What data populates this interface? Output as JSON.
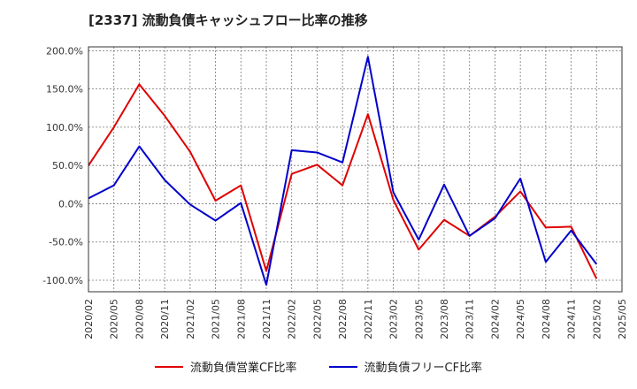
{
  "chart_data": {
    "type": "line",
    "title": "[2337]  流動負債キャッシュフロー比率の推移",
    "y_tick_labels": [
      "200.0%",
      "150.0%",
      "100.0%",
      "50.0%",
      "0.0%",
      "-50.0%",
      "-100.0%"
    ],
    "y_ticks": [
      200,
      150,
      100,
      50,
      0,
      -50,
      -100
    ],
    "ylim": [
      -115,
      205
    ],
    "x_tick_labels": [
      "2020/02",
      "2020/05",
      "2020/08",
      "2020/11",
      "2021/02",
      "2021/05",
      "2021/08",
      "2021/11",
      "2022/02",
      "2022/05",
      "2022/08",
      "2022/11",
      "2023/02",
      "2023/05",
      "2023/08",
      "2023/11",
      "2024/02",
      "2024/05",
      "2024/08",
      "2024/11",
      "2025/02",
      "2025/05"
    ],
    "x": [
      "2020/02",
      "2020/05",
      "2020/08",
      "2020/11",
      "2021/02",
      "2021/05",
      "2021/08",
      "2021/11",
      "2022/02",
      "2022/05",
      "2022/08",
      "2022/11",
      "2023/02",
      "2023/05",
      "2023/08",
      "2023/11",
      "2024/02",
      "2024/05",
      "2024/08",
      "2024/11",
      "2025/02"
    ],
    "grid": true,
    "legend_position": "bottom",
    "series": [
      {
        "name": "流動負債営業CF比率",
        "color": "#e00000",
        "values": [
          50,
          100,
          156,
          115,
          68,
          4,
          24,
          -88,
          39,
          51,
          24,
          117,
          5,
          -60,
          -21,
          -42,
          -17,
          16,
          -31,
          -30,
          -98
        ]
      },
      {
        "name": "流動負債フリーCF比率",
        "color": "#0000cc",
        "values": [
          7,
          24,
          75,
          31,
          -1,
          -22,
          1,
          -106,
          70,
          67,
          54,
          192,
          15,
          -47,
          25,
          -42,
          -19,
          33,
          -76,
          -35,
          -79
        ]
      }
    ]
  }
}
